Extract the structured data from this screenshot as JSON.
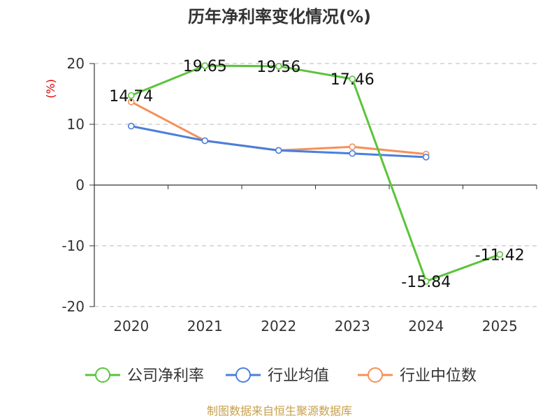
{
  "chart_data": {
    "type": "line",
    "title": "历年净利率变化情况(%)",
    "ylabel": "(%)",
    "xlabel": "",
    "categories": [
      "2020",
      "2021",
      "2022",
      "2023",
      "2024",
      "2025"
    ],
    "ylim": [
      -20,
      20
    ],
    "yticks": [
      20,
      10,
      0,
      -10,
      -20
    ],
    "grid": true,
    "legend_position": "bottom",
    "series": [
      {
        "name": "公司净利率",
        "color": "#5ac43a",
        "values": [
          14.74,
          19.65,
          19.56,
          17.46,
          -15.84,
          -11.42
        ],
        "labels": [
          "14.74",
          "19.65",
          "19.56",
          "17.46",
          "-15.84",
          "-11.42"
        ]
      },
      {
        "name": "行业均值",
        "color": "#4a7fdc",
        "values": [
          9.7,
          7.3,
          5.7,
          5.2,
          4.6,
          null
        ]
      },
      {
        "name": "行业中位数",
        "color": "#f5905a",
        "values": [
          13.7,
          7.3,
          5.7,
          6.3,
          5.1,
          null
        ]
      }
    ]
  },
  "source_text": "制图数据来自恒生聚源数据库"
}
